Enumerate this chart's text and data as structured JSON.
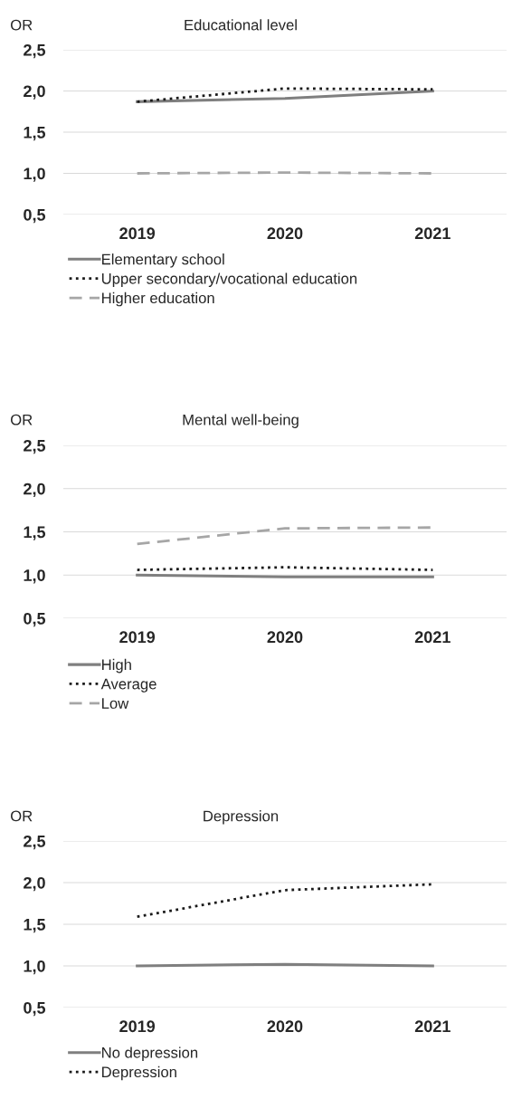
{
  "chart_data": [
    {
      "type": "line",
      "title": "Educational level",
      "ylabel": "OR",
      "categories": [
        "2019",
        "2020",
        "2021"
      ],
      "ylim": [
        0.5,
        2.5
      ],
      "yticks": [
        {
          "value": 0.5,
          "label": "0,5"
        },
        {
          "value": 1.0,
          "label": "1,0"
        },
        {
          "value": 1.5,
          "label": "1,5"
        },
        {
          "value": 2.0,
          "label": "2,0"
        },
        {
          "value": 2.5,
          "label": "2,5"
        }
      ],
      "grid": "y",
      "legend": "bottom",
      "marker": "none",
      "series": [
        {
          "name": "Elementary school",
          "color": "#7f7f7f",
          "line_style": "solid",
          "values": [
            1.87,
            1.91,
            2.0
          ]
        },
        {
          "name": "Upper secondary/vocational education",
          "color": "#1a1a1a",
          "line_style": "dotted",
          "values": [
            1.87,
            2.03,
            2.02
          ]
        },
        {
          "name": "Higher education",
          "color": "#a6a6a6",
          "line_style": "dashed",
          "values": [
            1.0,
            1.01,
            1.0
          ]
        }
      ]
    },
    {
      "type": "line",
      "title": "Mental well-being",
      "ylabel": "OR",
      "categories": [
        "2019",
        "2020",
        "2021"
      ],
      "ylim": [
        0.5,
        2.5
      ],
      "yticks": [
        {
          "value": 0.5,
          "label": "0,5"
        },
        {
          "value": 1.0,
          "label": "1,0"
        },
        {
          "value": 1.5,
          "label": "1,5"
        },
        {
          "value": 2.0,
          "label": "2,0"
        },
        {
          "value": 2.5,
          "label": "2,5"
        }
      ],
      "grid": "y",
      "legend": "bottom",
      "marker": "none",
      "series": [
        {
          "name": "High",
          "color": "#7f7f7f",
          "line_style": "solid",
          "values": [
            1.0,
            0.98,
            0.98
          ]
        },
        {
          "name": "Average",
          "color": "#1a1a1a",
          "line_style": "dotted",
          "values": [
            1.06,
            1.09,
            1.06
          ]
        },
        {
          "name": "Low",
          "color": "#a6a6a6",
          "line_style": "dashed",
          "values": [
            1.36,
            1.54,
            1.55
          ]
        }
      ]
    },
    {
      "type": "line",
      "title": "Depression",
      "ylabel": "OR",
      "categories": [
        "2019",
        "2020",
        "2021"
      ],
      "ylim": [
        0.5,
        2.5
      ],
      "yticks": [
        {
          "value": 0.5,
          "label": "0,5"
        },
        {
          "value": 1.0,
          "label": "1,0"
        },
        {
          "value": 1.5,
          "label": "1,5"
        },
        {
          "value": 2.0,
          "label": "2,0"
        },
        {
          "value": 2.5,
          "label": "2,5"
        }
      ],
      "grid": "y",
      "legend": "bottom",
      "marker": "none",
      "series": [
        {
          "name": "No depression",
          "color": "#7f7f7f",
          "line_style": "solid",
          "values": [
            1.0,
            1.02,
            1.0
          ]
        },
        {
          "name": "Depression",
          "color": "#1a1a1a",
          "line_style": "dotted",
          "values": [
            1.59,
            1.91,
            1.98
          ]
        }
      ]
    }
  ]
}
